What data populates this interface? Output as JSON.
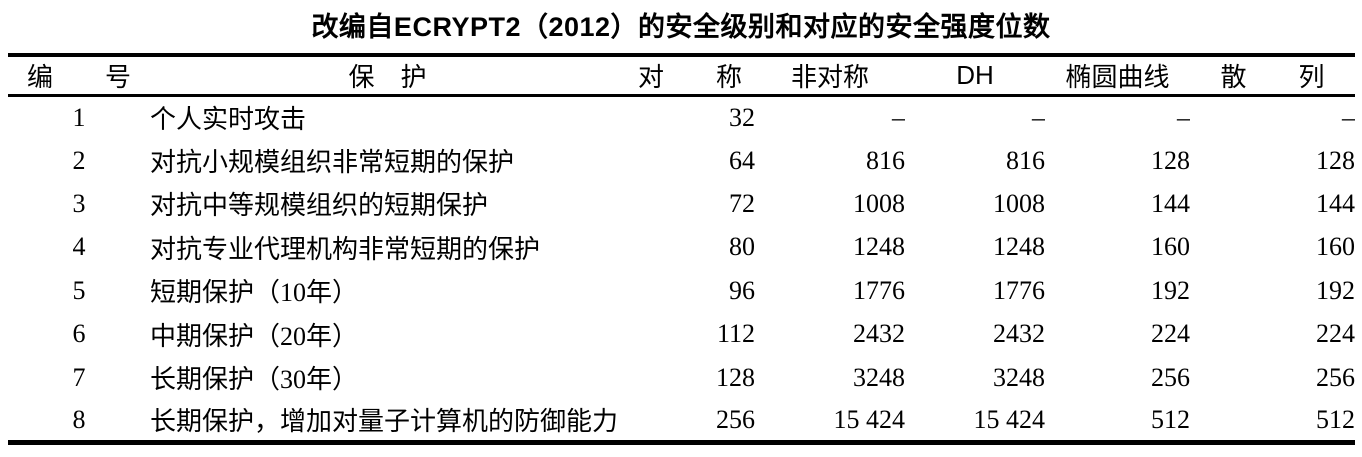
{
  "title": "改编自ECRYPT2（2012）的安全级别和对应的安全强度位数",
  "colors": {
    "text": "#000000",
    "background": "#ffffff",
    "rule": "#000000"
  },
  "table": {
    "columns": [
      {
        "label": "编　　号"
      },
      {
        "label": "保　护"
      },
      {
        "label": "对　　称"
      },
      {
        "label": "非对称"
      },
      {
        "label": "DH"
      },
      {
        "label": "椭圆曲线"
      },
      {
        "label": "散　　列"
      }
    ],
    "rows": [
      {
        "cells": [
          "1",
          "个人实时攻击",
          "32",
          "–",
          "–",
          "–",
          "–"
        ]
      },
      {
        "cells": [
          "2",
          "对抗小规模组织非常短期的保护",
          "64",
          "816",
          "816",
          "128",
          "128"
        ]
      },
      {
        "cells": [
          "3",
          "对抗中等规模组织的短期保护",
          "72",
          "1008",
          "1008",
          "144",
          "144"
        ]
      },
      {
        "cells": [
          "4",
          "对抗专业代理机构非常短期的保护",
          "80",
          "1248",
          "1248",
          "160",
          "160"
        ]
      },
      {
        "cells": [
          "5",
          "短期保护（10年）",
          "96",
          "1776",
          "1776",
          "192",
          "192"
        ]
      },
      {
        "cells": [
          "6",
          "中期保护（20年）",
          "112",
          "2432",
          "2432",
          "224",
          "224"
        ]
      },
      {
        "cells": [
          "7",
          "长期保护（30年）",
          "128",
          "3248",
          "3248",
          "256",
          "256"
        ]
      },
      {
        "cells": [
          "8",
          "长期保护，增加对量子计算机的防御能力",
          "256",
          "15 424",
          "15 424",
          "512",
          "512"
        ]
      }
    ]
  }
}
